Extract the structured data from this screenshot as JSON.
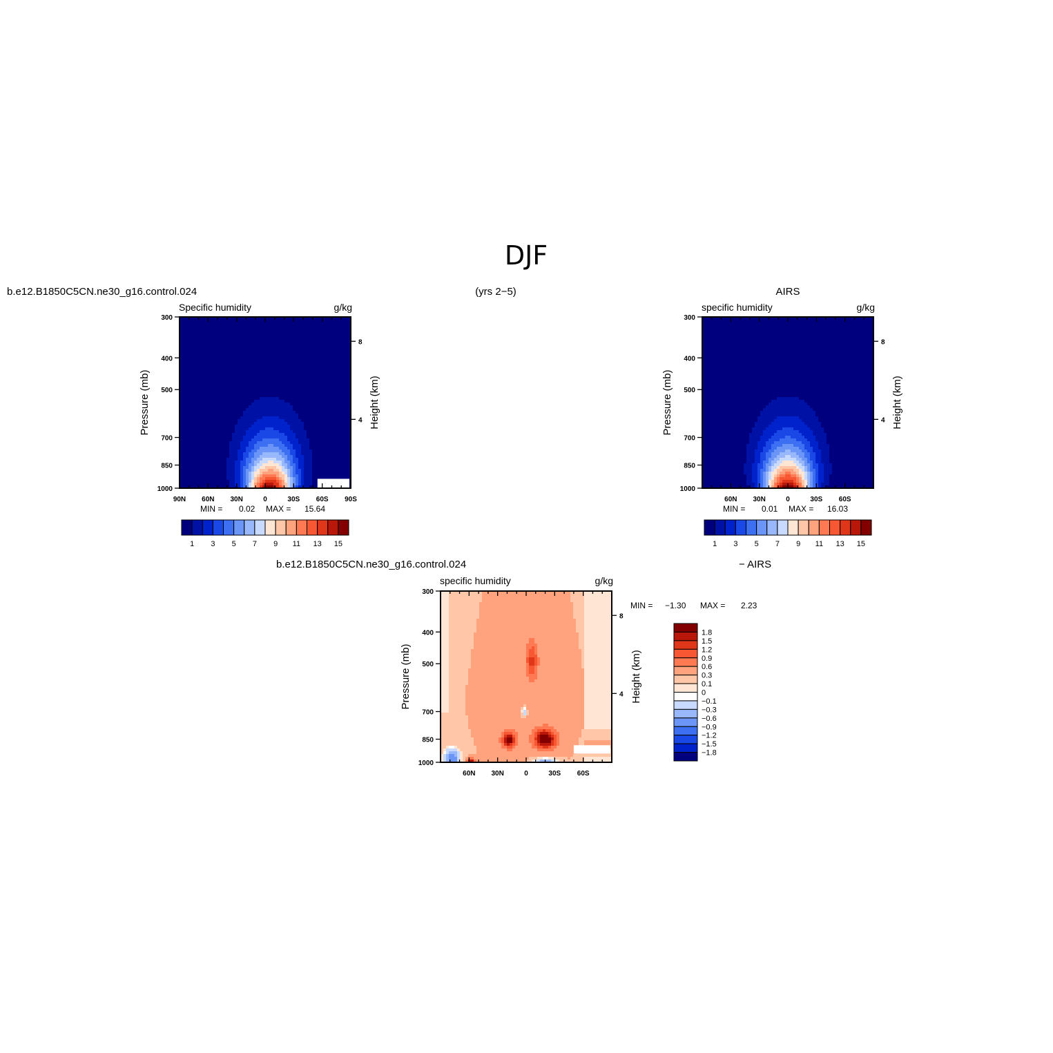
{
  "figure": {
    "title": "DJF",
    "subtitle": "(yrs 2−5)"
  },
  "colors": {
    "level_colors": [
      "#00007f",
      "#0011a6",
      "#0022cc",
      "#1a48e6",
      "#3d6ff2",
      "#6b96f7",
      "#99b8fb",
      "#c8daff",
      "#ffe6d4",
      "#ffc6a8",
      "#ffa27e",
      "#ff7a52",
      "#f75732",
      "#e0361a",
      "#b8170a",
      "#820000"
    ],
    "diff_colors": [
      "#00007f",
      "#0022cc",
      "#1a48e6",
      "#3d6ff2",
      "#6b96f7",
      "#99b8fb",
      "#c8daff",
      "#ffffff",
      "#ffe6d4",
      "#ffc6a8",
      "#ffa27e",
      "#ff7a52",
      "#f75732",
      "#e0361a",
      "#b8170a",
      "#820000"
    ],
    "frame": "#000000",
    "missing": "#ffffff"
  },
  "chart_data": [
    {
      "id": "panel-model",
      "type": "contour",
      "case_name": "b.e12.B1850C5CN.ne30_g16.control.024",
      "variable_label": "Specific humidity",
      "units": "g/kg",
      "ylabel": "Pressure (mb)",
      "y2label": "Height (km)",
      "x_ticks": [
        "90N",
        "60N",
        "30N",
        "0",
        "30S",
        "60S",
        "90S"
      ],
      "y_ticks": [
        "300",
        "400",
        "500",
        "700",
        "850",
        "1000"
      ],
      "y2_ticks": [
        "8",
        "4"
      ],
      "x_range": [
        90,
        -90
      ],
      "y_range": [
        1000,
        300
      ],
      "min_label": "MIN =",
      "min_value": "0.02",
      "max_label": "MAX =",
      "max_value": "15.64",
      "peak": 15.64,
      "peak_lat": -5,
      "levels": [
        1,
        2,
        3,
        4,
        5,
        6,
        7,
        8,
        9,
        10,
        11,
        12,
        13,
        14,
        15
      ],
      "colorbar_labels": [
        "1",
        "3",
        "5",
        "7",
        "9",
        "11",
        "13",
        "15"
      ],
      "missing_box": {
        "lat": [
          -55,
          -90
        ],
        "p": [
          1000,
          950
        ]
      }
    },
    {
      "id": "panel-obs",
      "type": "contour",
      "case_name": "AIRS",
      "variable_label": "specific humidity",
      "units": "g/kg",
      "ylabel": "Pressure (mb)",
      "y2label": "Height (km)",
      "x_ticks": [
        "60N",
        "30N",
        "0",
        "30S",
        "60S"
      ],
      "y_ticks": [
        "300",
        "400",
        "500",
        "700",
        "850",
        "1000"
      ],
      "y2_ticks": [
        "8",
        "4"
      ],
      "x_range": [
        90,
        -90
      ],
      "y_range": [
        1000,
        300
      ],
      "min_label": "MIN =",
      "min_value": "0.01",
      "max_label": "MAX =",
      "max_value": "16.03",
      "peak": 16.03,
      "peak_lat": 0,
      "levels": [
        1,
        2,
        3,
        4,
        5,
        6,
        7,
        8,
        9,
        10,
        11,
        12,
        13,
        14,
        15
      ],
      "colorbar_labels": [
        "1",
        "3",
        "5",
        "7",
        "9",
        "11",
        "13",
        "15"
      ]
    },
    {
      "id": "panel-diff",
      "type": "contour",
      "case_name": "b.e12.B1850C5CN.ne30_g16.control.024",
      "case_name_right": "− AIRS",
      "variable_label": "specific humidity",
      "units": "g/kg",
      "ylabel": "Pressure (mb)",
      "y2label": "Height (km)",
      "x_ticks": [
        "60N",
        "30N",
        "0",
        "30S",
        "60S"
      ],
      "y_ticks": [
        "300",
        "400",
        "500",
        "700",
        "850",
        "1000"
      ],
      "y2_ticks": [
        "8",
        "4"
      ],
      "x_range": [
        90,
        -90
      ],
      "y_range": [
        1000,
        300
      ],
      "min_label": "MIN =",
      "min_value": "−1.30",
      "max_label": "MAX =",
      "max_value": "2.23",
      "levels": [
        -1.8,
        -1.5,
        -1.2,
        -0.9,
        -0.6,
        -0.3,
        -0.1,
        0,
        0.1,
        0.3,
        0.6,
        0.9,
        1.2,
        1.5,
        1.8
      ],
      "colorbar_labels": [
        "1.8",
        "1.5",
        "1.2",
        "0.9",
        "0.6",
        "0.3",
        "0.1",
        "0",
        "−0.1",
        "−0.3",
        "−0.6",
        "−0.9",
        "−1.2",
        "−1.5",
        "−1.8"
      ],
      "missing_box": {
        "lat": [
          -50,
          -90
        ],
        "p": [
          940,
          900
        ]
      }
    }
  ]
}
